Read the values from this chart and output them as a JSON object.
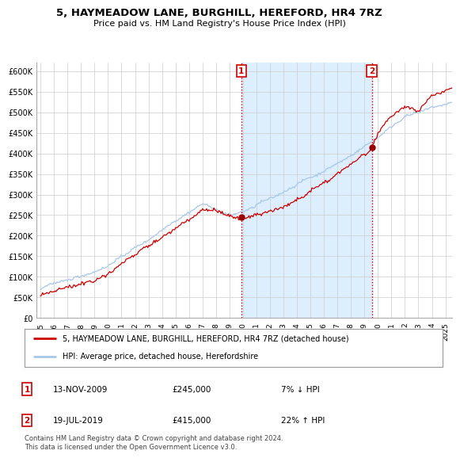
{
  "title": "5, HAYMEADOW LANE, BURGHILL, HEREFORD, HR4 7RZ",
  "subtitle": "Price paid vs. HM Land Registry's House Price Index (HPI)",
  "legend_line1": "5, HAYMEADOW LANE, BURGHILL, HEREFORD, HR4 7RZ (detached house)",
  "legend_line2": "HPI: Average price, detached house, Herefordshire",
  "transaction1_date": "13-NOV-2009",
  "transaction1_price": "£245,000",
  "transaction1_hpi": "7% ↓ HPI",
  "transaction2_date": "19-JUL-2019",
  "transaction2_price": "£415,000",
  "transaction2_hpi": "22% ↑ HPI",
  "footer": "Contains HM Land Registry data © Crown copyright and database right 2024.\nThis data is licensed under the Open Government Licence v3.0.",
  "hpi_color": "#a8c8e8",
  "price_color": "#cc0000",
  "shade_color": "#ddeeff",
  "background_color": "#ffffff",
  "grid_color": "#cccccc",
  "ylim": [
    0,
    620000
  ],
  "yticks": [
    0,
    50000,
    100000,
    150000,
    200000,
    250000,
    300000,
    350000,
    400000,
    450000,
    500000,
    550000,
    600000
  ],
  "year_start": 1995,
  "year_end": 2025,
  "t1_year": 2009.875,
  "t2_year": 2019.542,
  "t1_price": 245000,
  "t2_price": 415000
}
